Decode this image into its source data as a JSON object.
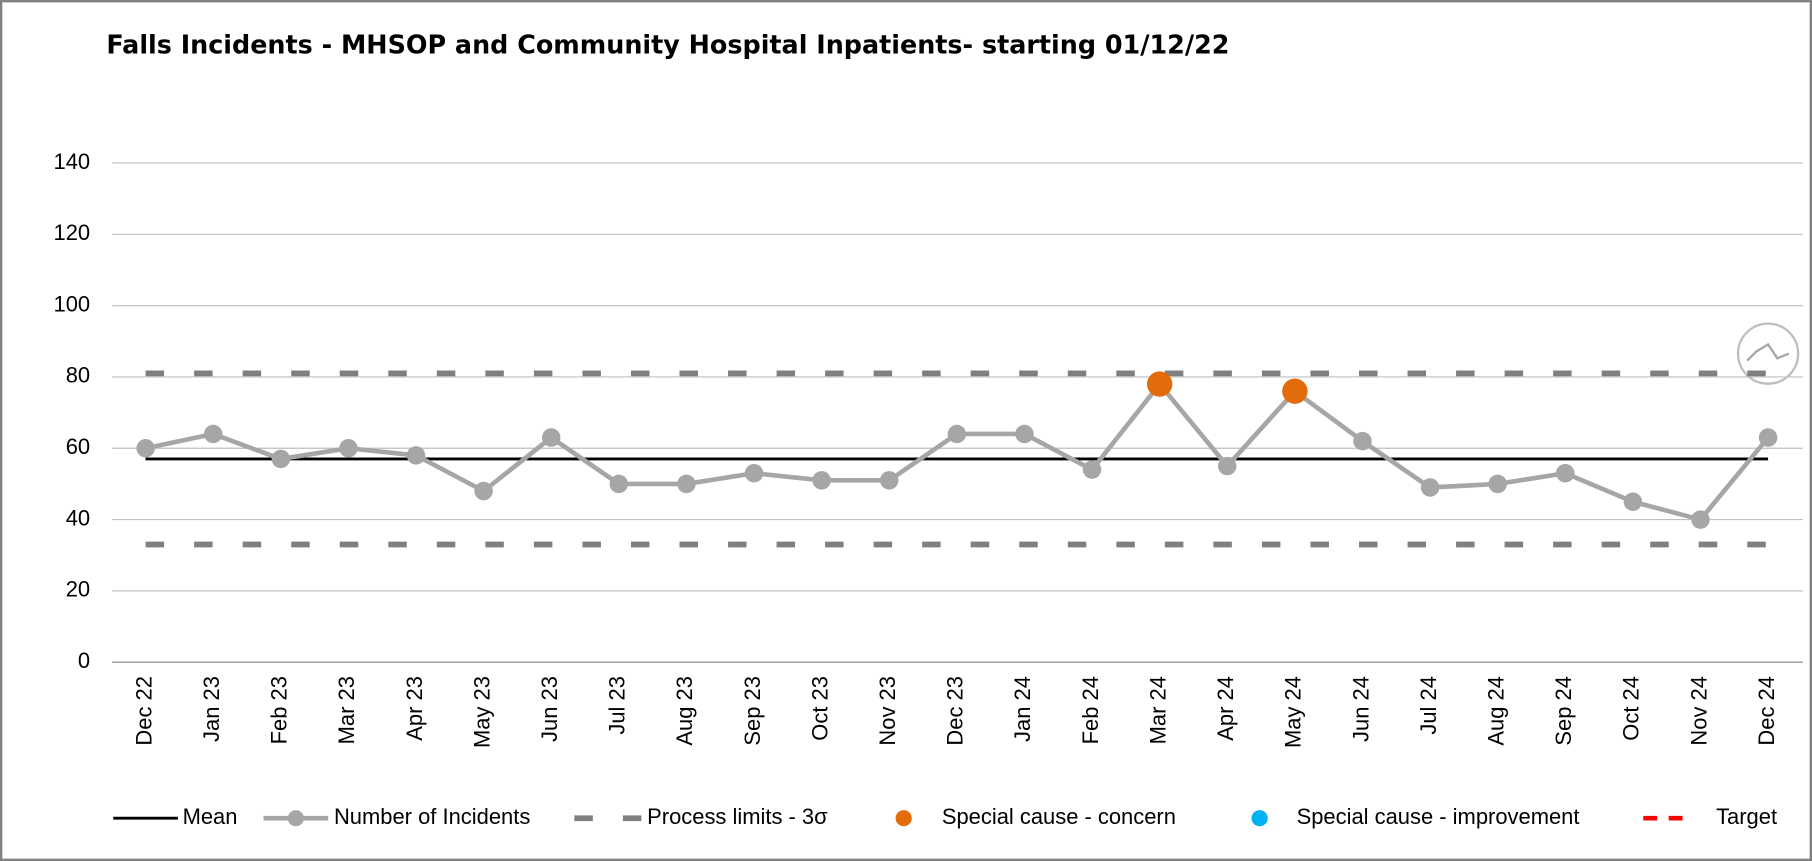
{
  "chart_data": {
    "type": "line",
    "title": "Falls Incidents - MHSOP and Community Hospital Inpatients- starting 01/12/22",
    "categories": [
      "Dec 22",
      "Jan 23",
      "Feb 23",
      "Mar 23",
      "Apr 23",
      "May 23",
      "Jun 23",
      "Jul 23",
      "Aug 23",
      "Sep 23",
      "Oct 23",
      "Nov 23",
      "Dec 23",
      "Jan 24",
      "Feb 24",
      "Mar 24",
      "Apr 24",
      "May 24",
      "Jun 24",
      "Jul 24",
      "Aug 24",
      "Sep 24",
      "Oct 24",
      "Nov 24",
      "Dec 24"
    ],
    "series": [
      {
        "name": "Mean",
        "color": "#000000",
        "values": [
          57,
          57,
          57,
          57,
          57,
          57,
          57,
          57,
          57,
          57,
          57,
          57,
          57,
          57,
          57,
          57,
          57,
          57,
          57,
          57,
          57,
          57,
          57,
          57,
          57
        ]
      },
      {
        "name": "Number of Incidents",
        "color": "#a6a6a6",
        "values": [
          60,
          64,
          57,
          60,
          58,
          48,
          63,
          50,
          50,
          53,
          51,
          51,
          64,
          64,
          54,
          78,
          55,
          76,
          62,
          49,
          50,
          53,
          45,
          40,
          63
        ]
      },
      {
        "name": "Process limits - 3σ",
        "color": "#7f7f7f",
        "values": [
          81,
          81,
          81,
          81,
          81,
          81,
          81,
          81,
          81,
          81,
          81,
          81,
          81,
          81,
          81,
          81,
          81,
          81,
          81,
          81,
          81,
          81,
          81,
          81,
          81
        ],
        "lower_values": [
          33,
          33,
          33,
          33,
          33,
          33,
          33,
          33,
          33,
          33,
          33,
          33,
          33,
          33,
          33,
          33,
          33,
          33,
          33,
          33,
          33,
          33,
          33,
          33,
          33
        ]
      },
      {
        "name": "Special cause - concern",
        "color": "#e36c0a",
        "values": [
          null,
          null,
          null,
          null,
          null,
          null,
          null,
          null,
          null,
          null,
          null,
          null,
          null,
          null,
          null,
          78,
          null,
          76,
          null,
          null,
          null,
          null,
          null,
          null,
          null
        ]
      },
      {
        "name": "Special cause  - improvement",
        "color": "#00b0f0",
        "values": [
          null,
          null,
          null,
          null,
          null,
          null,
          null,
          null,
          null,
          null,
          null,
          null,
          null,
          null,
          null,
          null,
          null,
          null,
          null,
          null,
          null,
          null,
          null,
          null,
          null
        ]
      },
      {
        "name": "Target",
        "color": "#ff0000",
        "values": [
          null,
          null,
          null,
          null,
          null,
          null,
          null,
          null,
          null,
          null,
          null,
          null,
          null,
          null,
          null,
          null,
          null,
          null,
          null,
          null,
          null,
          null,
          null,
          null,
          null
        ]
      }
    ],
    "ylim": [
      0,
      140
    ],
    "yticks": [
      0,
      20,
      40,
      60,
      80,
      100,
      120,
      140
    ],
    "grid": true,
    "legend": "bottom"
  }
}
